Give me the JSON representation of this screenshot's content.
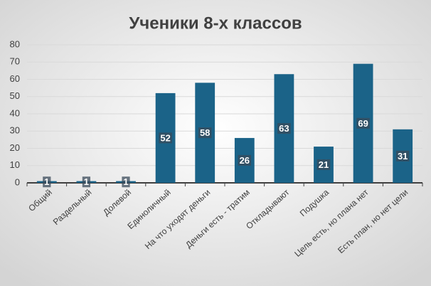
{
  "chart_data": {
    "type": "bar",
    "title": "Ученики 8-х классов",
    "categories": [
      "Общий",
      "Раздельный",
      "Долевой",
      "Единоличный",
      "На что уходят деньги",
      "Деньги есть - тратим",
      "Откладывают",
      "Подушка",
      "Цель есть, но плана нет",
      "Есть план, но нет цели"
    ],
    "values": [
      1,
      1,
      1,
      52,
      58,
      26,
      63,
      21,
      69,
      31
    ],
    "color": "#1b6388",
    "ylim": [
      0,
      80
    ],
    "yticks": [
      0,
      10,
      20,
      30,
      40,
      50,
      60,
      70,
      80
    ],
    "grid": true
  }
}
